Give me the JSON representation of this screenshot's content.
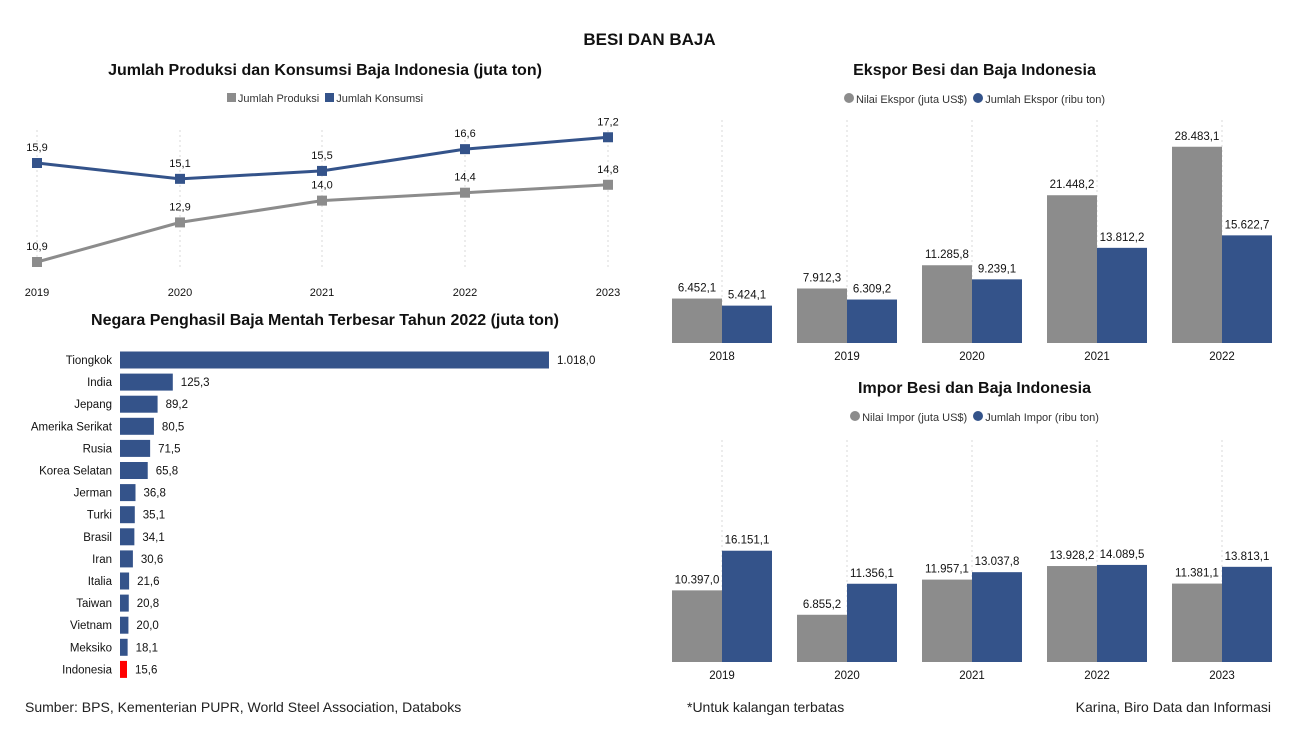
{
  "main_title": "BESI DAN BAJA",
  "footer": {
    "source": "Sumber: BPS, Kementerian PUPR, World Steel Association, Databoks",
    "note": "*Untuk kalangan terbatas",
    "author": "Karina, Biro Data dan Informasi"
  },
  "colors": {
    "gray": "#8c8c8c",
    "blue": "#34538a",
    "red": "#ff0000"
  },
  "chart_data": [
    {
      "id": "produksi-konsumsi",
      "type": "line",
      "title": "Jumlah Produksi dan Konsumsi Baja Indonesia (juta ton)",
      "x": [
        "2019",
        "2020",
        "2021",
        "2022",
        "2023"
      ],
      "series": [
        {
          "name": "Jumlah Produksi",
          "color": "#8c8c8c",
          "values": [
            10.9,
            12.9,
            14.0,
            14.4,
            14.8
          ],
          "labels": [
            "10,9",
            "12,9",
            "14,0",
            "14,4",
            "14,8"
          ]
        },
        {
          "name": "Jumlah Konsumsi",
          "color": "#34538a",
          "values": [
            15.9,
            15.1,
            15.5,
            16.6,
            17.2
          ],
          "labels": [
            "15,9",
            "15,1",
            "15,5",
            "16,6",
            "17,2"
          ]
        }
      ],
      "legend": "top-center",
      "grid": "vertical-dotted"
    },
    {
      "id": "negara-penghasil",
      "type": "bar",
      "orientation": "horizontal",
      "title": "Negara Penghasil Baja Mentah Terbesar Tahun 2022 (juta ton)",
      "categories": [
        "Tiongkok",
        "India",
        "Jepang",
        "Amerika Serikat",
        "Rusia",
        "Korea Selatan",
        "Jerman",
        "Turki",
        "Brasil",
        "Iran",
        "Italia",
        "Taiwan",
        "Vietnam",
        "Meksiko",
        "Indonesia"
      ],
      "values": [
        1018.0,
        125.3,
        89.2,
        80.5,
        71.5,
        65.8,
        36.8,
        35.1,
        34.1,
        30.6,
        21.6,
        20.8,
        20.0,
        18.1,
        15.6
      ],
      "labels": [
        "1.018,0",
        "125,3",
        "89,2",
        "80,5",
        "71,5",
        "65,8",
        "36,8",
        "35,1",
        "34,1",
        "30,6",
        "21,6",
        "20,8",
        "20,0",
        "18,1",
        "15,6"
      ],
      "highlight": "Indonesia"
    },
    {
      "id": "ekspor",
      "type": "bar",
      "title": "Ekspor Besi dan Baja Indonesia",
      "categories": [
        "2018",
        "2019",
        "2020",
        "2021",
        "2022"
      ],
      "series": [
        {
          "name": "Nilai Ekspor (juta US$)",
          "color": "#8c8c8c",
          "values": [
            6452.1,
            7912.3,
            11285.8,
            21448.2,
            28483.1
          ],
          "labels": [
            "6.452,1",
            "7.912,3",
            "11.285,8",
            "21.448,2",
            "28.483,1"
          ]
        },
        {
          "name": "Jumlah Ekspor (ribu ton)",
          "color": "#34538a",
          "values": [
            5424.1,
            6309.2,
            9239.1,
            13812.2,
            15622.7
          ],
          "labels": [
            "5.424,1",
            "6.309,2",
            "9.239,1",
            "13.812,2",
            "15.622,7"
          ]
        }
      ],
      "legend": "top-center"
    },
    {
      "id": "impor",
      "type": "bar",
      "title": "Impor Besi dan Baja Indonesia",
      "categories": [
        "2019",
        "2020",
        "2021",
        "2022",
        "2023"
      ],
      "series": [
        {
          "name": "Nilai Impor (juta US$)",
          "color": "#8c8c8c",
          "values": [
            10397.0,
            6855.2,
            11957.1,
            13928.2,
            11381.1
          ],
          "labels": [
            "10.397,0",
            "6.855,2",
            "11.957,1",
            "13.928,2",
            "11.381,1"
          ]
        },
        {
          "name": "Jumlah Impor (ribu ton)",
          "color": "#34538a",
          "values": [
            16151.1,
            11356.1,
            13037.8,
            14089.5,
            13813.1
          ],
          "labels": [
            "16.151,1",
            "11.356,1",
            "13.037,8",
            "14.089,5",
            "13.813,1"
          ]
        }
      ],
      "legend": "top-center"
    }
  ]
}
